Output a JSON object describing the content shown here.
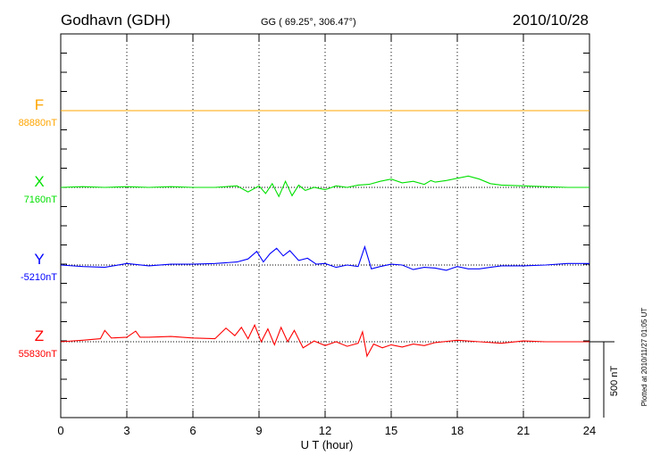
{
  "header": {
    "station": "Godhavn (GDH)",
    "coords": "GG ( 69.25°, 306.47°)",
    "date": "2010/10/28"
  },
  "footer_note": "Plotted at 2010/11/27 01:05 UT",
  "scale_label": "500 nT",
  "chart_data": {
    "type": "line",
    "xlabel": "U T (hour)",
    "xlim": [
      0,
      24
    ],
    "xticks": [
      "0",
      "3",
      "6",
      "9",
      "12",
      "15",
      "18",
      "21",
      "24"
    ],
    "x_tick_values": [
      0,
      3,
      6,
      9,
      12,
      15,
      18,
      21,
      24
    ],
    "scale_nT": 500,
    "colors": {
      "F": "#ffa500",
      "X": "#00e000",
      "Y": "#0000ff",
      "Z": "#ff0000",
      "axis": "#000000"
    },
    "series": [
      {
        "name": "F",
        "baseline_label": "88880nT",
        "color": "#ffa500",
        "x": [
          0,
          24
        ],
        "y": [
          0,
          0
        ]
      },
      {
        "name": "X",
        "baseline_label": "7160nT",
        "color": "#00e000",
        "x": [
          0,
          1,
          2,
          3,
          4,
          5,
          6,
          7,
          8,
          8.5,
          9,
          9.3,
          9.6,
          9.9,
          10.2,
          10.5,
          10.8,
          11.1,
          11.5,
          12,
          12.5,
          13,
          13.5,
          14,
          14.5,
          15,
          15.5,
          16,
          16.5,
          16.8,
          17,
          17.5,
          18,
          18.5,
          19,
          19.5,
          20,
          21,
          22,
          23,
          24
        ],
        "y": [
          0,
          5,
          0,
          5,
          0,
          5,
          0,
          0,
          10,
          -30,
          10,
          -40,
          25,
          -60,
          40,
          -55,
          15,
          -20,
          0,
          -15,
          10,
          0,
          15,
          20,
          40,
          55,
          30,
          40,
          20,
          45,
          35,
          45,
          60,
          75,
          55,
          25,
          15,
          10,
          5,
          0,
          0
        ]
      },
      {
        "name": "Y",
        "baseline_label": "-5210nT",
        "color": "#0000ff",
        "x": [
          0,
          1,
          2,
          3,
          4,
          5,
          6,
          7,
          8,
          8.5,
          8.9,
          9.2,
          9.5,
          9.8,
          10.1,
          10.4,
          10.8,
          11.2,
          11.6,
          12,
          12.5,
          13,
          13.5,
          13.8,
          14.1,
          14.5,
          15,
          15.5,
          16,
          16.5,
          17,
          17.5,
          18,
          18.5,
          19,
          19.5,
          20,
          21,
          22,
          23,
          24
        ],
        "y": [
          0,
          -10,
          -15,
          10,
          -5,
          5,
          5,
          10,
          20,
          40,
          90,
          20,
          75,
          110,
          60,
          95,
          30,
          45,
          5,
          10,
          -15,
          0,
          -10,
          120,
          -25,
          -10,
          5,
          0,
          -30,
          -15,
          -20,
          -35,
          -10,
          -25,
          -25,
          -15,
          -5,
          -5,
          0,
          10,
          10
        ]
      },
      {
        "name": "Z",
        "baseline_label": "55830nT",
        "color": "#ff0000",
        "x": [
          0,
          1,
          1.8,
          2,
          2.3,
          3,
          3.4,
          3.6,
          4,
          5,
          6,
          7,
          7.5,
          7.9,
          8.2,
          8.5,
          8.8,
          9.1,
          9.4,
          9.7,
          10,
          10.3,
          10.6,
          11,
          11.5,
          12,
          12.5,
          13,
          13.5,
          13.7,
          13.9,
          14.2,
          14.6,
          15,
          15.5,
          16,
          16.5,
          17,
          18,
          19,
          20,
          21,
          22,
          23,
          24
        ],
        "y": [
          0,
          10,
          20,
          75,
          25,
          30,
          70,
          30,
          30,
          35,
          25,
          20,
          90,
          40,
          95,
          20,
          110,
          0,
          85,
          -20,
          95,
          0,
          75,
          -40,
          5,
          -25,
          0,
          -30,
          -10,
          65,
          -95,
          -15,
          -40,
          -20,
          -35,
          -15,
          -25,
          -5,
          10,
          0,
          -10,
          5,
          0,
          0,
          0
        ]
      }
    ]
  }
}
